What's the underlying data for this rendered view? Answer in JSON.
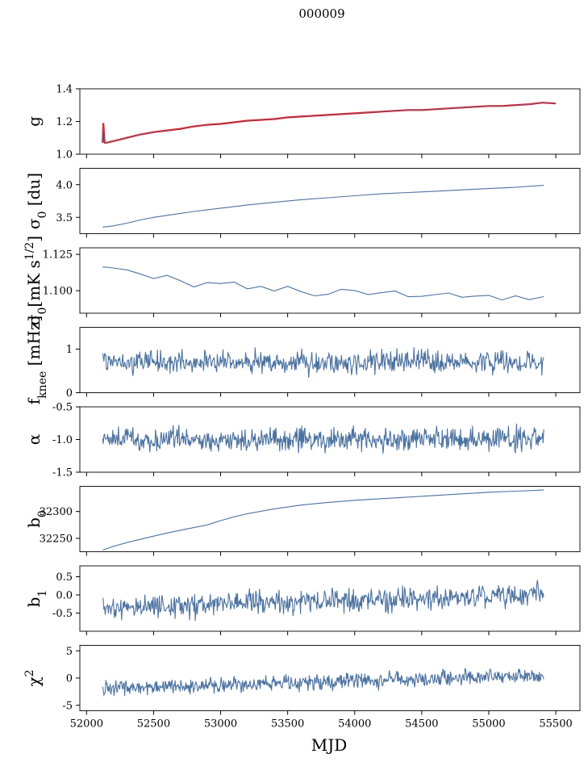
{
  "figure": {
    "title": "000009",
    "xlabel": "MJD"
  },
  "colors": {
    "series": "#4c72a0",
    "fit": "#ff0000",
    "axis": "#000000"
  },
  "chart_data": [
    {
      "id": "g",
      "type": "line",
      "ylabel": "g",
      "xlim": [
        51950,
        55680
      ],
      "ylim": [
        1.0,
        1.4
      ],
      "yticks": [
        "1.0",
        "1.2",
        "1.4"
      ],
      "ytick_values": [
        1.0,
        1.2,
        1.4
      ],
      "series": [
        {
          "x": [
            52120,
            52125,
            52135,
            52150,
            52200,
            52250,
            52300,
            52400,
            52500,
            52600,
            52700,
            52800,
            52900,
            53000,
            53100,
            53200,
            53300,
            53400,
            53500,
            53600,
            53700,
            53800,
            53900,
            54000,
            54100,
            54200,
            54300,
            54400,
            54500,
            54600,
            54700,
            54800,
            54900,
            55000,
            55100,
            55200,
            55300,
            55400,
            55500
          ],
          "y": [
            1.07,
            1.19,
            1.07,
            1.07,
            1.08,
            1.09,
            1.1,
            1.12,
            1.135,
            1.145,
            1.155,
            1.17,
            1.18,
            1.185,
            1.195,
            1.205,
            1.21,
            1.215,
            1.225,
            1.23,
            1.235,
            1.24,
            1.245,
            1.25,
            1.255,
            1.26,
            1.265,
            1.27,
            1.27,
            1.275,
            1.28,
            1.285,
            1.29,
            1.295,
            1.295,
            1.3,
            1.305,
            1.315,
            1.31
          ]
        }
      ]
    },
    {
      "id": "sigma0_du",
      "type": "line",
      "ylabel": "σ0 [du]",
      "xlim": [
        51950,
        55680
      ],
      "ylim": [
        3.25,
        4.25
      ],
      "yticks": [
        "3.5",
        "4.0"
      ],
      "ytick_values": [
        3.5,
        4.0
      ],
      "series": [
        {
          "x": [
            52120,
            52200,
            52300,
            52400,
            52500,
            52600,
            52800,
            53000,
            53200,
            53400,
            53600,
            53800,
            54000,
            54200,
            54400,
            54600,
            54800,
            55000,
            55200,
            55410
          ],
          "y": [
            3.35,
            3.37,
            3.41,
            3.46,
            3.5,
            3.53,
            3.59,
            3.64,
            3.69,
            3.73,
            3.77,
            3.8,
            3.83,
            3.86,
            3.88,
            3.9,
            3.92,
            3.94,
            3.96,
            3.99
          ]
        }
      ]
    },
    {
      "id": "sigma0_mk",
      "type": "line",
      "ylabel": "σ0[mK s1/2]",
      "xlim": [
        51950,
        55680
      ],
      "ylim": [
        1.0845,
        1.1295
      ],
      "yticks": [
        "1.100",
        "1.125"
      ],
      "ytick_values": [
        1.1,
        1.125
      ],
      "series": [
        {
          "x": [
            52120,
            52200,
            52300,
            52400,
            52500,
            52600,
            52700,
            52800,
            52900,
            53000,
            53100,
            53200,
            53300,
            53400,
            53500,
            53600,
            53700,
            53800,
            53900,
            54000,
            54100,
            54200,
            54300,
            54400,
            54500,
            54600,
            54700,
            54800,
            54900,
            55000,
            55100,
            55200,
            55300,
            55410
          ],
          "y": [
            1.117,
            1.116,
            1.114,
            1.112,
            1.108,
            1.11,
            1.107,
            1.103,
            1.106,
            1.105,
            1.106,
            1.101,
            1.103,
            1.1,
            1.103,
            1.099,
            1.097,
            1.098,
            1.101,
            1.1,
            1.097,
            1.099,
            1.1,
            1.096,
            1.096,
            1.097,
            1.098,
            1.095,
            1.096,
            1.097,
            1.094,
            1.096,
            1.094,
            1.096
          ]
        }
      ]
    },
    {
      "id": "fknee",
      "type": "line",
      "ylabel": "fknee [mHz]",
      "xlim": [
        51950,
        55680
      ],
      "ylim": [
        0,
        1.5
      ],
      "yticks": [
        "0",
        "1"
      ],
      "ytick_values": [
        0,
        1
      ],
      "noise": {
        "x_start": 52120,
        "x_end": 55410,
        "mean": 0.7,
        "amplitude": 0.13
      },
      "series": [
        {
          "x": [
            52120,
            55410
          ],
          "y": [
            0.7,
            0.7
          ]
        }
      ]
    },
    {
      "id": "alpha",
      "type": "line",
      "ylabel": "α",
      "xlim": [
        51950,
        55680
      ],
      "ylim": [
        -1.5,
        -0.5
      ],
      "yticks": [
        "-1.5",
        "-1.0",
        "-0.5"
      ],
      "ytick_values": [
        -1.5,
        -1.0,
        -0.5
      ],
      "noise": {
        "x_start": 52120,
        "x_end": 55410,
        "mean": -1.0,
        "amplitude": 0.09
      },
      "series": [
        {
          "x": [
            52120,
            55410
          ],
          "y": [
            -1.0,
            -1.0
          ]
        }
      ]
    },
    {
      "id": "b0",
      "type": "line",
      "ylabel": "b0",
      "xlim": [
        51950,
        55680
      ],
      "ylim": [
        32225,
        32347
      ],
      "yticks": [
        "32250",
        "32300"
      ],
      "ytick_values": [
        32250,
        32300
      ],
      "series": [
        {
          "x": [
            52120,
            52200,
            52300,
            52400,
            52500,
            52600,
            52700,
            52800,
            52900,
            53000,
            53100,
            53200,
            53400,
            53600,
            53800,
            54000,
            54200,
            54400,
            54600,
            54800,
            55000,
            55200,
            55410
          ],
          "y": [
            32228,
            32235,
            32242,
            32248,
            32254,
            32260,
            32265,
            32270,
            32275,
            32283,
            32290,
            32296,
            32305,
            32312,
            32317,
            32321,
            32324,
            32327,
            32330,
            32333,
            32336,
            32338,
            32340
          ]
        }
      ]
    },
    {
      "id": "b1",
      "type": "line",
      "ylabel": "b1",
      "xlim": [
        51950,
        55680
      ],
      "ylim": [
        -1.0,
        0.8
      ],
      "yticks": [
        "-0.5",
        "0.0",
        "0.5"
      ],
      "ytick_values": [
        -0.5,
        0.0,
        0.5
      ],
      "noise": {
        "x_start": 52120,
        "x_end": 55410,
        "mean_start": -0.35,
        "mean_end": 0.0,
        "amplitude": 0.16
      },
      "series": [
        {
          "x": [
            52120,
            55410
          ],
          "y": [
            -0.35,
            0.0
          ]
        }
      ]
    },
    {
      "id": "chi2",
      "type": "line",
      "ylabel": "χ2",
      "xlim": [
        51950,
        55680
      ],
      "ylim": [
        -6,
        6
      ],
      "yticks": [
        "-5",
        "0",
        "5"
      ],
      "ytick_values": [
        -5,
        0,
        5
      ],
      "noise": {
        "x_start": 52120,
        "x_end": 55410,
        "mean_start": -2.0,
        "mean_end": 0.5,
        "amplitude": 0.7
      },
      "series": [
        {
          "x": [
            52120,
            55410
          ],
          "y": [
            -2.0,
            0.5
          ]
        }
      ]
    }
  ],
  "xticks": [
    "52000",
    "52500",
    "53000",
    "53500",
    "54000",
    "54500",
    "55000",
    "55500"
  ],
  "xtick_values": [
    52000,
    52500,
    53000,
    53500,
    54000,
    54500,
    55000,
    55500
  ]
}
